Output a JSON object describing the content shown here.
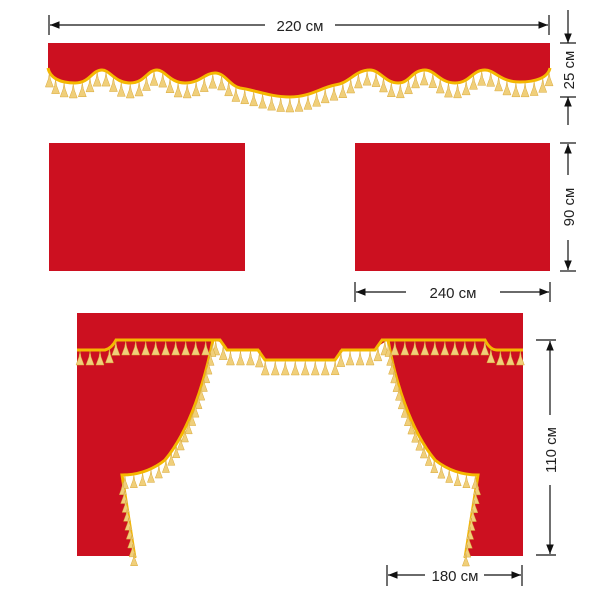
{
  "colors": {
    "fabric": "#cc1020",
    "trim": "#f5b800",
    "tassel": "#f0cf7a",
    "line": "#111111"
  },
  "dimensions": {
    "valance_width": "220 см",
    "valance_height": "25 см",
    "panel_height": "90 см",
    "panel_width": "240 см",
    "curtain_height": "110 см",
    "curtain_width": "180 см"
  }
}
